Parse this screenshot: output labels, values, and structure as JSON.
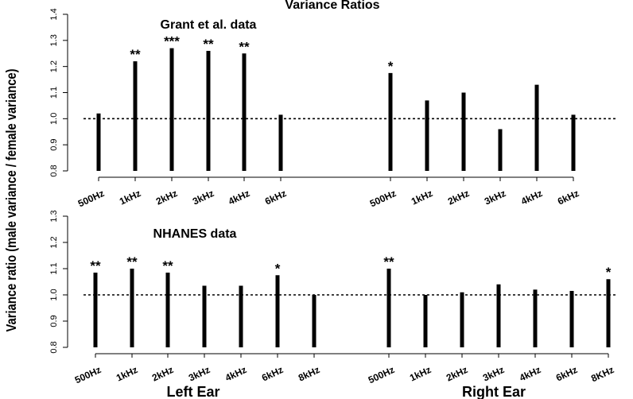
{
  "figure": {
    "title": "Variance Ratios",
    "ylabel": "Variance ratio (male variance / female variance)",
    "group_labels": [
      "Left Ear",
      "Right Ear"
    ]
  },
  "chart_data": [
    {
      "type": "bar",
      "title": "Grant et al. data",
      "ylim": [
        0.8,
        1.4
      ],
      "yticks": [
        "0.8",
        "0.9",
        "1.0",
        "1.1",
        "1.2",
        "1.3",
        "1.4"
      ],
      "reference_line": 1.0,
      "groups": [
        {
          "categories": [
            "500Hz",
            "1kHz",
            "2kHz",
            "3kHz",
            "4kHz",
            "6kHz"
          ],
          "values": [
            1.02,
            1.22,
            1.27,
            1.26,
            1.25,
            1.015
          ],
          "significance": [
            "",
            "**",
            "***",
            "**",
            "**",
            ""
          ]
        },
        {
          "categories": [
            "500Hz",
            "1kHz",
            "2kHz",
            "3kHz",
            "4kHz",
            "6kHz"
          ],
          "values": [
            1.175,
            1.07,
            1.1,
            0.96,
            1.13,
            1.015
          ],
          "significance": [
            "*",
            "",
            "",
            "",
            "",
            ""
          ]
        }
      ]
    },
    {
      "type": "bar",
      "title": "NHANES data",
      "ylim": [
        0.8,
        1.3
      ],
      "yticks": [
        "0.8",
        "0.9",
        "1.0",
        "1.1",
        "1.2",
        "1.3"
      ],
      "reference_line": 1.0,
      "groups": [
        {
          "categories": [
            "500Hz",
            "1kHz",
            "2kHz",
            "3kHz",
            "4kHz",
            "6kHz",
            "8kHz"
          ],
          "values": [
            1.085,
            1.1,
            1.085,
            1.035,
            1.035,
            1.075,
            1.0
          ],
          "significance": [
            "**",
            "**",
            "**",
            "",
            "",
            "*",
            ""
          ]
        },
        {
          "categories": [
            "500Hz",
            "1kHz",
            "2kHz",
            "3kHz",
            "4kHz",
            "6kHz",
            "8KHz"
          ],
          "values": [
            1.1,
            1.0,
            1.01,
            1.04,
            1.02,
            1.015,
            1.06
          ],
          "significance": [
            "**",
            "",
            "",
            "",
            "",
            "",
            "*"
          ]
        }
      ]
    }
  ]
}
